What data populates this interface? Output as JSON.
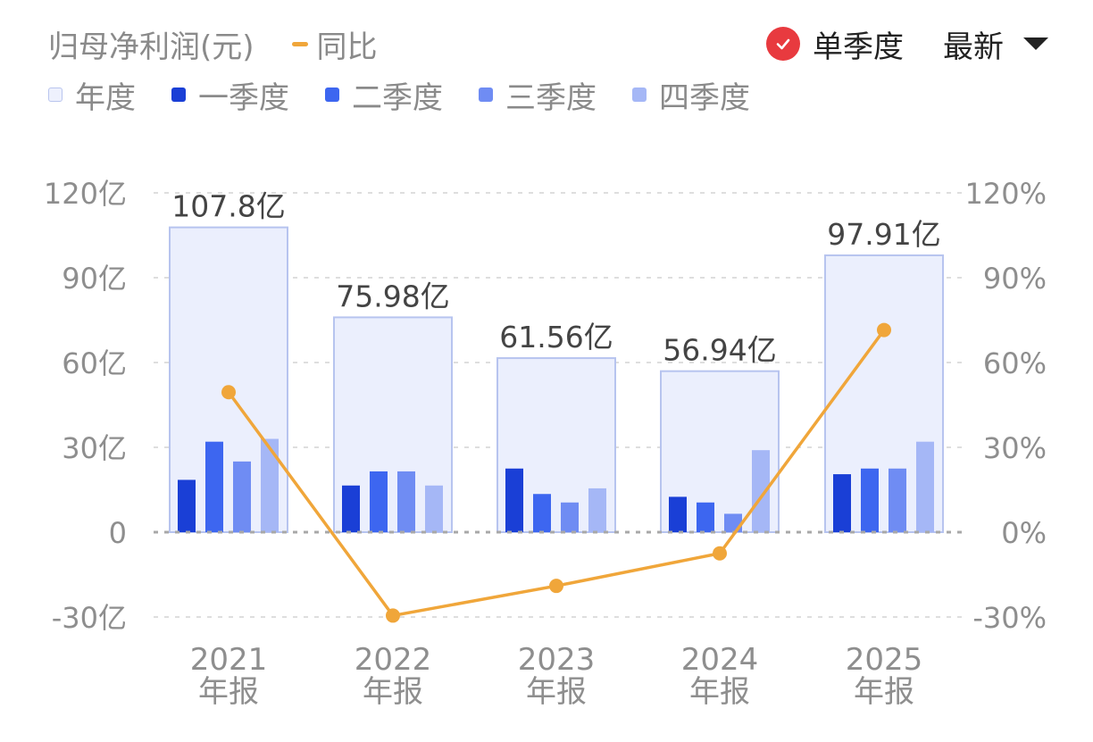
{
  "header": {
    "metric_label": "归母净利润(元)",
    "line_label": "同比",
    "mode_label": "单季度",
    "sort_label": "最新"
  },
  "legend": [
    {
      "label": "年度",
      "color": "#eef1fd",
      "border": "#b9c5ee"
    },
    {
      "label": "一季度",
      "color": "#1a3fd6"
    },
    {
      "label": "二季度",
      "color": "#3d66f0"
    },
    {
      "label": "三季度",
      "color": "#6f8cf3"
    },
    {
      "label": "四季度",
      "color": "#a5b7f6"
    }
  ],
  "colors": {
    "line": "#f0a63a",
    "check": "#e83a3f",
    "axis_text": "#8e8e8e",
    "grid": "#dedede",
    "zero_line": "#a8a8a8",
    "annual_fill": "#ebeffd",
    "annual_border": "#b7c4ef",
    "value_label": "#444444"
  },
  "chart_data": {
    "type": "bar",
    "categories": [
      "2021\n年报",
      "2022\n年报",
      "2023\n年报",
      "2024\n年报",
      "2025\n年报"
    ],
    "annual": {
      "name": "年度",
      "values": [
        107.8,
        75.98,
        61.56,
        56.94,
        97.91
      ],
      "labels": [
        "107.8亿",
        "75.98亿",
        "61.56亿",
        "56.94亿",
        "97.91亿"
      ]
    },
    "series": [
      {
        "name": "一季度",
        "values": [
          18.5,
          16.5,
          22.5,
          12.5,
          20.5
        ]
      },
      {
        "name": "二季度",
        "values": [
          32.0,
          21.5,
          13.5,
          10.5,
          22.5
        ]
      },
      {
        "name": "三季度",
        "values": [
          25.0,
          21.5,
          10.5,
          6.5,
          22.5
        ]
      },
      {
        "name": "四季度",
        "values": [
          33.0,
          16.5,
          15.5,
          29.0,
          32.0
        ]
      }
    ],
    "line": {
      "name": "同比",
      "values": [
        49.5,
        -29.5,
        -19.0,
        -7.5,
        71.5
      ]
    },
    "y_left": {
      "ticks": [
        -30,
        0,
        30,
        60,
        90,
        120
      ],
      "labels": [
        "-30亿",
        "0",
        "30亿",
        "60亿",
        "90亿",
        "120亿"
      ],
      "ylim": [
        -30,
        120
      ]
    },
    "y_right": {
      "ticks": [
        -30,
        0,
        30,
        60,
        90,
        120
      ],
      "labels": [
        "-30%",
        "0%",
        "30%",
        "60%",
        "90%",
        "120%"
      ],
      "ylim": [
        -30,
        120
      ]
    },
    "grid": true
  }
}
